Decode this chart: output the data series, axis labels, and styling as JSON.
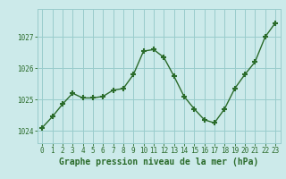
{
  "x": [
    0,
    1,
    2,
    3,
    4,
    5,
    6,
    7,
    8,
    9,
    10,
    11,
    12,
    13,
    14,
    15,
    16,
    17,
    18,
    19,
    20,
    21,
    22,
    23
  ],
  "y": [
    1024.1,
    1024.45,
    1024.85,
    1025.2,
    1025.05,
    1025.05,
    1025.1,
    1025.3,
    1025.35,
    1025.8,
    1026.55,
    1026.6,
    1026.35,
    1025.75,
    1025.1,
    1024.7,
    1024.35,
    1024.25,
    1024.7,
    1025.35,
    1025.8,
    1026.2,
    1027.0,
    1027.45
  ],
  "line_color": "#2a6b2a",
  "marker": "+",
  "marker_size": 4,
  "marker_lw": 1.5,
  "line_width": 1.0,
  "bg_color": "#cceaea",
  "grid_color": "#99cccc",
  "xlabel": "Graphe pression niveau de la mer (hPa)",
  "xlabel_fontsize": 7,
  "xlabel_color": "#2a6b2a",
  "tick_color": "#2a6b2a",
  "tick_fontsize": 5.5,
  "ylim": [
    1023.6,
    1027.9
  ],
  "yticks": [
    1024,
    1025,
    1026,
    1027
  ],
  "xlim": [
    -0.5,
    23.5
  ],
  "xticks": [
    0,
    1,
    2,
    3,
    4,
    5,
    6,
    7,
    8,
    9,
    10,
    11,
    12,
    13,
    14,
    15,
    16,
    17,
    18,
    19,
    20,
    21,
    22,
    23
  ]
}
